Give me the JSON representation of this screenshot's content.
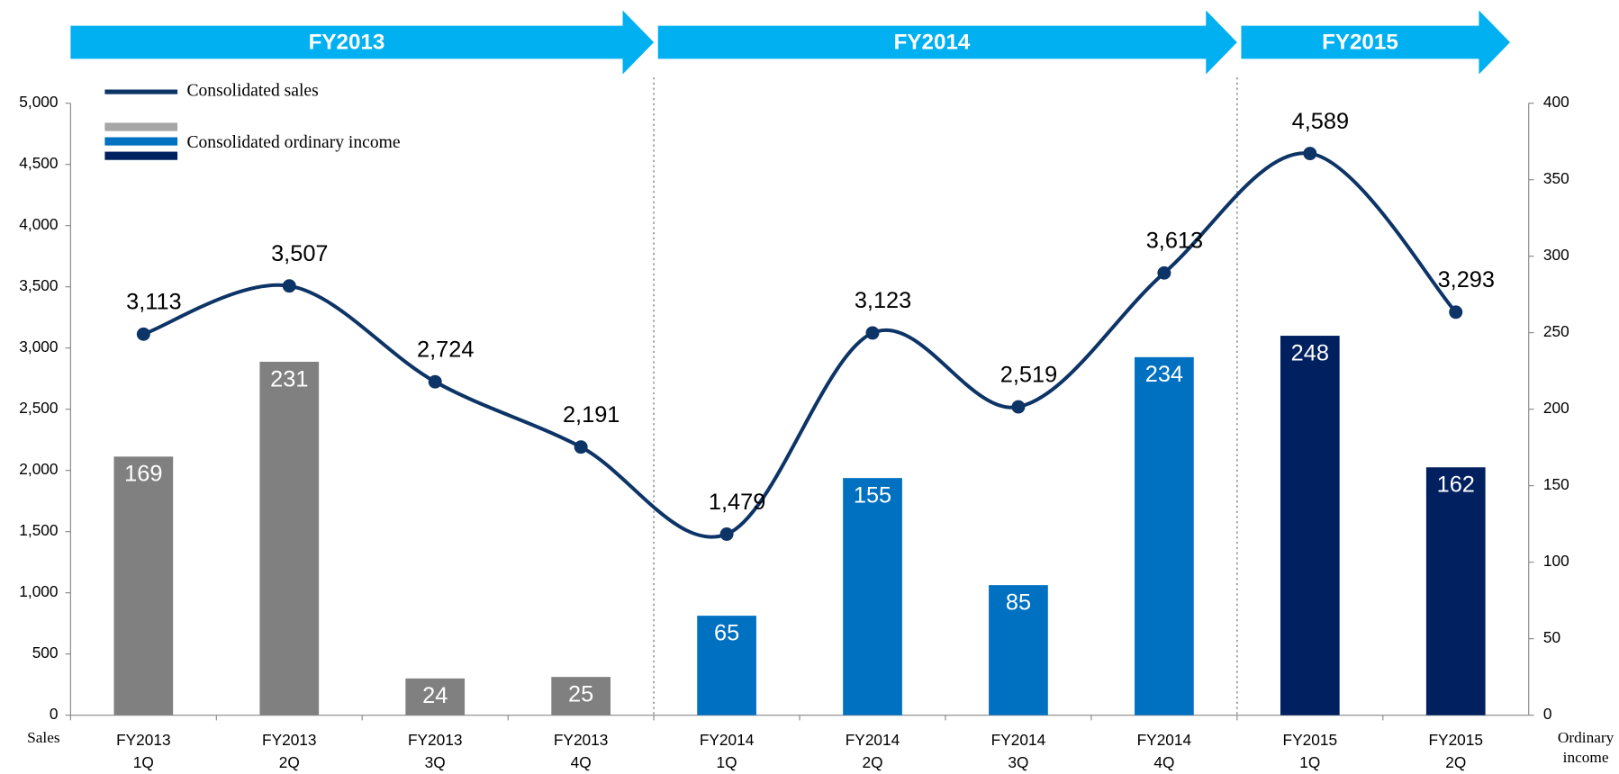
{
  "chart_data": {
    "type": "bar-line",
    "periods": [
      "FY2013",
      "FY2014",
      "FY2015"
    ],
    "categories": [
      [
        "FY2013",
        "1Q"
      ],
      [
        "FY2013",
        "2Q"
      ],
      [
        "FY2013",
        "3Q"
      ],
      [
        "FY2013",
        "4Q"
      ],
      [
        "FY2014",
        "1Q"
      ],
      [
        "FY2014",
        "2Q"
      ],
      [
        "FY2014",
        "3Q"
      ],
      [
        "FY2014",
        "4Q"
      ],
      [
        "FY2015",
        "1Q"
      ],
      [
        "FY2015",
        "2Q"
      ]
    ],
    "series": [
      {
        "name": "Consolidated sales",
        "type": "line",
        "color": "#0d3466",
        "values": [
          3113,
          3507,
          2724,
          2191,
          1479,
          3123,
          2519,
          3613,
          4589,
          3293
        ],
        "value_labels": [
          "3,113",
          "3,507",
          "2,724",
          "2,191",
          "1,479",
          "3,123",
          "2,519",
          "3,613",
          "4,589",
          "3,293"
        ]
      },
      {
        "name": "Consolidated ordinary income",
        "type": "bar",
        "axis": "y2",
        "colors": [
          "#808080",
          "#808080",
          "#808080",
          "#808080",
          "#0070c0",
          "#0070c0",
          "#0070c0",
          "#0070c0",
          "#002060",
          "#002060"
        ],
        "values": [
          169,
          231,
          24,
          25,
          65,
          155,
          85,
          234,
          248,
          162
        ]
      }
    ],
    "legend_colors": [
      "#a6a6a6",
      "#0070c0",
      "#002060"
    ],
    "banner_color": "#00b0f0",
    "ylabel": "Sales",
    "y2label": "Ordinary income",
    "ylim": [
      0,
      5000
    ],
    "yticks": [
      0,
      500,
      {
        "value": 1000,
        "label": "1,000"
      },
      {
        "value": 1500,
        "label": "1,500"
      },
      {
        "value": 2000,
        "label": "2,000"
      },
      {
        "value": 2500,
        "label": "2,500"
      },
      {
        "value": 3000,
        "label": "3,000"
      },
      {
        "value": 3500,
        "label": "3,500"
      },
      {
        "value": 4000,
        "label": "4,000"
      },
      {
        "value": 4500,
        "label": "4,500"
      },
      {
        "value": 5000,
        "label": "5,000"
      }
    ],
    "y2lim": [
      0,
      400
    ],
    "y2ticks": [
      0,
      50,
      100,
      150,
      200,
      250,
      300,
      350,
      400
    ]
  }
}
